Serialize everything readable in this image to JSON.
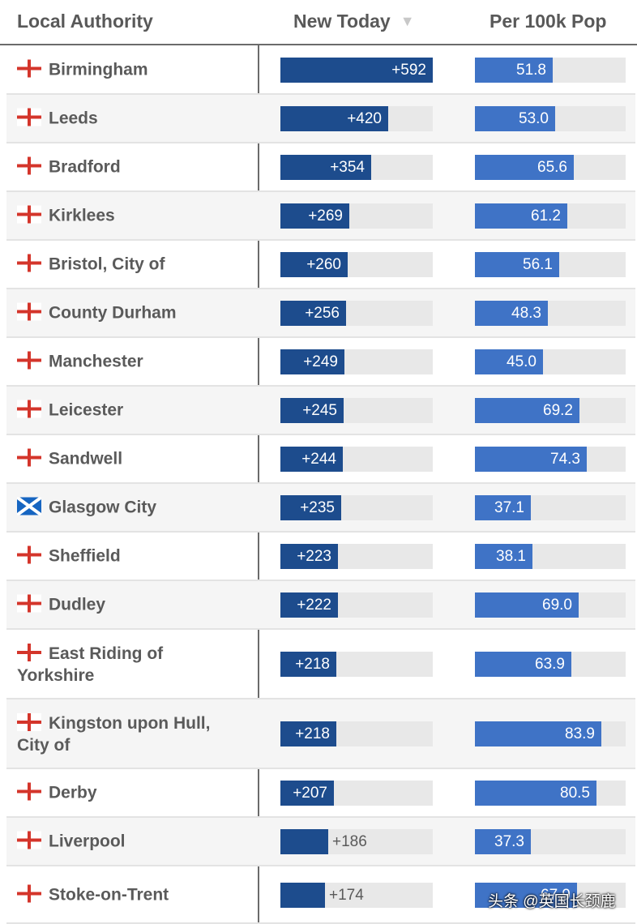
{
  "header": {
    "local_authority": "Local Authority",
    "new_today": "New Today",
    "sort_arrow": "▼",
    "per_100k": "Per 100k Pop"
  },
  "colors": {
    "new_bar": "#1d4c8d",
    "per_bar": "#3f73c6",
    "track": "#e8e8e8"
  },
  "rows": [
    {
      "flag": "england-flag",
      "name": "Birmingham",
      "new_today": "+592",
      "new_value": 592,
      "per_100k": "51.8",
      "per_value": 51.8
    },
    {
      "flag": "england-flag",
      "name": "Leeds",
      "new_today": "+420",
      "new_value": 420,
      "per_100k": "53.0",
      "per_value": 53.0
    },
    {
      "flag": "england-flag",
      "name": "Bradford",
      "new_today": "+354",
      "new_value": 354,
      "per_100k": "65.6",
      "per_value": 65.6
    },
    {
      "flag": "england-flag",
      "name": "Kirklees",
      "new_today": "+269",
      "new_value": 269,
      "per_100k": "61.2",
      "per_value": 61.2
    },
    {
      "flag": "england-flag",
      "name": "Bristol, City of",
      "new_today": "+260",
      "new_value": 260,
      "per_100k": "56.1",
      "per_value": 56.1
    },
    {
      "flag": "england-flag",
      "name": "County Durham",
      "new_today": "+256",
      "new_value": 256,
      "per_100k": "48.3",
      "per_value": 48.3
    },
    {
      "flag": "england-flag",
      "name": "Manchester",
      "new_today": "+249",
      "new_value": 249,
      "per_100k": "45.0",
      "per_value": 45.0
    },
    {
      "flag": "england-flag",
      "name": "Leicester",
      "new_today": "+245",
      "new_value": 245,
      "per_100k": "69.2",
      "per_value": 69.2
    },
    {
      "flag": "england-flag",
      "name": "Sandwell",
      "new_today": "+244",
      "new_value": 244,
      "per_100k": "74.3",
      "per_value": 74.3
    },
    {
      "flag": "scotland-flag",
      "name": "Glasgow City",
      "new_today": "+235",
      "new_value": 235,
      "per_100k": "37.1",
      "per_value": 37.1
    },
    {
      "flag": "england-flag",
      "name": "Sheffield",
      "new_today": "+223",
      "new_value": 223,
      "per_100k": "38.1",
      "per_value": 38.1
    },
    {
      "flag": "england-flag",
      "name": "Dudley",
      "new_today": "+222",
      "new_value": 222,
      "per_100k": "69.0",
      "per_value": 69.0
    },
    {
      "flag": "england-flag",
      "name": "East Riding of Yorkshire",
      "new_today": "+218",
      "new_value": 218,
      "per_100k": "63.9",
      "per_value": 63.9
    },
    {
      "flag": "england-flag",
      "name": "Kingston upon Hull, City of",
      "new_today": "+218",
      "new_value": 218,
      "per_100k": "83.9",
      "per_value": 83.9
    },
    {
      "flag": "england-flag",
      "name": "Derby",
      "new_today": "+207",
      "new_value": 207,
      "per_100k": "80.5",
      "per_value": 80.5
    },
    {
      "flag": "england-flag",
      "name": "Liverpool",
      "new_today": "+186",
      "new_value": 186,
      "per_100k": "37.3",
      "per_value": 37.3
    },
    {
      "flag": "england-flag",
      "name": "Stoke-on-Trent",
      "new_today": "+174",
      "new_value": 174,
      "per_100k": "67.9",
      "per_value": 67.9
    }
  ],
  "watermark": "头条 @英国长颈鹿"
}
